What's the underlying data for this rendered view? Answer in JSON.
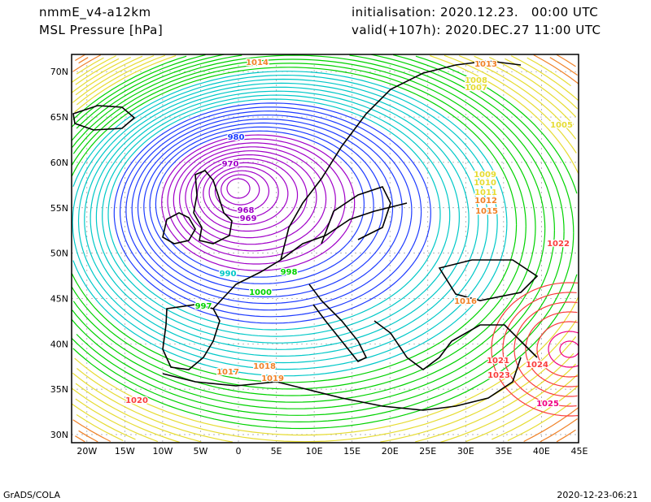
{
  "header": {
    "model": "nmmE_v4-a12km",
    "field": "MSL Pressure [hPa]",
    "init": "initialisation: 2020.12.23.   00:00 UTC",
    "valid": "valid(+107h): 2020.DEC.27 11:00 UTC"
  },
  "footer": {
    "software": "GrADS/COLA",
    "timestamp": "2020-12-23-06:21"
  },
  "axes": {
    "lon_ticks": [
      "20W",
      "15W",
      "10W",
      "5W",
      "0",
      "5E",
      "10E",
      "15E",
      "20E",
      "25E",
      "30E",
      "35E",
      "40E",
      "45E"
    ],
    "lat_ticks": [
      "70N",
      "65N",
      "60N",
      "55N",
      "50N",
      "45N",
      "40N",
      "35N",
      "30N"
    ]
  },
  "map": {
    "low_center_hpa": 968,
    "contour_interval_hpa": 1,
    "contour_labels": [
      "968",
      "969",
      "970",
      "980",
      "990",
      "997",
      "1000",
      "998",
      "1005",
      "1009",
      "1010",
      "1011",
      "1012",
      "1013",
      "1014",
      "1015",
      "1017",
      "1018",
      "1019",
      "1020",
      "1021",
      "1022",
      "1023",
      "1024",
      "1025",
      "1016",
      "1008",
      "1007"
    ]
  },
  "colors": {
    "purple": "#a000c8",
    "blue": "#1e3cff",
    "cyan": "#00c8c8",
    "green": "#00d200",
    "yellow": "#e6dc32",
    "orange": "#f08228",
    "red": "#fa3c3c",
    "magenta": "#f00082"
  }
}
